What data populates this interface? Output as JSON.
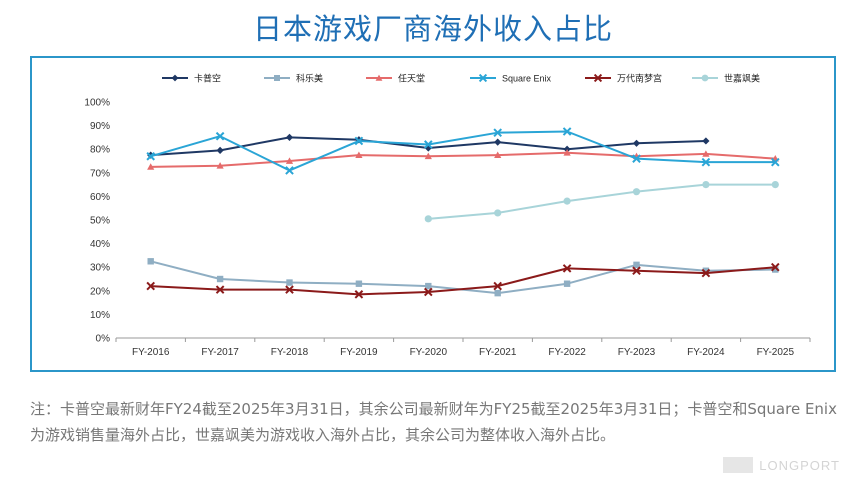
{
  "title": "日本游戏厂商海外收入占比",
  "note": "注：卡普空最新财年FY24截至2025年3月31日，其余公司最新财年为FY25截至2025年3月31日；卡普空和Square Enix为游戏销售量海外占比，世嘉飒美为游戏收入海外占比，其余公司为整体收入海外占比。",
  "watermark": "LONGPORT",
  "chart_data": {
    "type": "line",
    "title": "日本游戏厂商海外收入占比",
    "xlabel": "",
    "ylabel": "",
    "ylim": [
      0,
      100
    ],
    "y_ticks": [
      "0%",
      "10%",
      "20%",
      "30%",
      "40%",
      "50%",
      "60%",
      "70%",
      "80%",
      "90%",
      "100%"
    ],
    "categories": [
      "FY-2016",
      "FY-2017",
      "FY-2018",
      "FY-2019",
      "FY-2020",
      "FY-2021",
      "FY-2022",
      "FY-2023",
      "FY-2024",
      "FY-2025"
    ],
    "legend_position": "top",
    "series": [
      {
        "name": "卡普空",
        "color": "#1f3864",
        "marker": "diamond",
        "values": [
          77.5,
          79.5,
          85,
          84,
          80.5,
          83,
          80,
          82.5,
          83.5,
          null
        ]
      },
      {
        "name": "科乐美",
        "color": "#8faec3",
        "marker": "square",
        "values": [
          32.5,
          25,
          23.5,
          23,
          22,
          19,
          23,
          31,
          28.5,
          29
        ]
      },
      {
        "name": "任天堂",
        "color": "#e56b6b",
        "marker": "triangle",
        "values": [
          72.5,
          73,
          75,
          77.5,
          77,
          77.5,
          78.5,
          77,
          78,
          76
        ]
      },
      {
        "name": "Square Enix",
        "color": "#2aa5d6",
        "marker": "x",
        "values": [
          77,
          85.5,
          71,
          83.5,
          82,
          87,
          87.5,
          76,
          74.5,
          74.5
        ]
      },
      {
        "name": "万代南梦宫",
        "color": "#8b1a1a",
        "marker": "x",
        "values": [
          22,
          20.5,
          20.5,
          18.5,
          19.5,
          22,
          29.5,
          28.5,
          27.5,
          30
        ]
      },
      {
        "name": "世嘉飒美",
        "color": "#a8d4d9",
        "marker": "circle",
        "values": [
          null,
          null,
          null,
          null,
          50.5,
          53,
          58,
          62,
          65,
          65
        ]
      }
    ]
  }
}
